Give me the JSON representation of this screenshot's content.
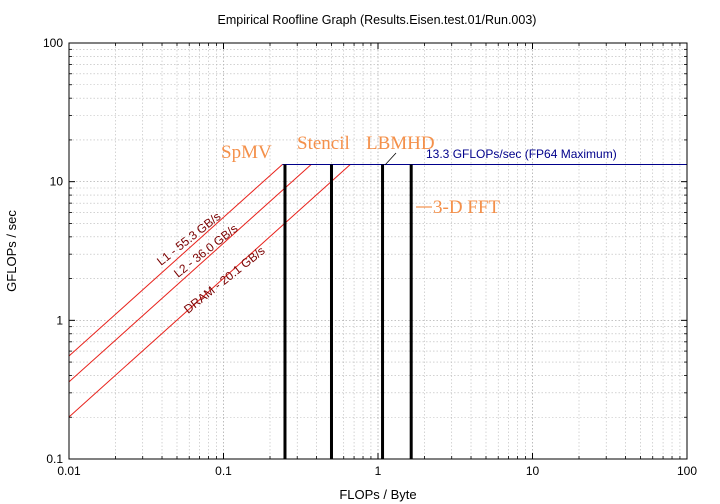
{
  "chart_data": {
    "type": "line",
    "title": "Empirical Roofline Graph (Results.Eisen.test.01/Run.003)",
    "xlabel": "FLOPs / Byte",
    "ylabel": "GFLOPs / sec",
    "xscale": "log",
    "yscale": "log",
    "xlim": [
      0.01,
      100
    ],
    "ylim": [
      0.1,
      100
    ],
    "grid": true,
    "x_ticks": [
      "0.01",
      "0.1",
      "1",
      "10",
      "100"
    ],
    "y_ticks": [
      "0.1",
      "1",
      "10",
      "100"
    ],
    "peak": {
      "label": "13.3 GFLOPs/sec (FP64 Maximum)",
      "value": 13.3,
      "color": "#00008b"
    },
    "bandwidths": [
      {
        "name": "L1 - 55.3 GB/s",
        "value": 55.3,
        "color": "#e8231d"
      },
      {
        "name": "L2 - 36.0 GB/s",
        "value": 36.0,
        "color": "#e8231d"
      },
      {
        "name": "DRAM - 20.1 GB/s",
        "value": 20.1,
        "color": "#e8231d"
      }
    ],
    "kernels": [
      {
        "name": "SpMV",
        "intensity": 0.25
      },
      {
        "name": "Stencil",
        "intensity": 0.5
      },
      {
        "name": "LBMHD",
        "intensity": 1.07
      },
      {
        "name": "3-D FFT",
        "intensity": 1.64
      }
    ]
  }
}
